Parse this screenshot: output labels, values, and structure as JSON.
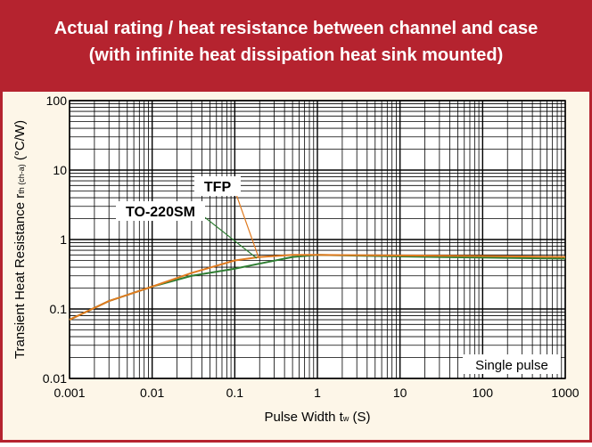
{
  "chart_data": {
    "type": "line",
    "title": [
      "Actual rating / heat resistance between channel and case",
      "(with infinite heat dissipation heat sink mounted)"
    ],
    "x_label": {
      "text": "Pulse Width t",
      "sub": "w",
      "suffix": " (S)"
    },
    "y_label": {
      "text": "Transient Heat Resistance r",
      "sub": "th (ch-a)",
      "suffix": " (°C/W)"
    },
    "x": [
      0.001,
      0.003,
      0.01,
      0.03,
      0.1,
      0.2,
      0.5,
      1,
      10,
      100,
      1000
    ],
    "series": [
      {
        "name": "TFP",
        "color": "#e07b20",
        "values": [
          0.07,
          0.13,
          0.21,
          0.33,
          0.5,
          0.56,
          0.6,
          0.6,
          0.59,
          0.58,
          0.56
        ]
      },
      {
        "name": "TO-220SM",
        "color": "#2e7d32",
        "values": [
          0.07,
          0.13,
          0.21,
          0.3,
          0.38,
          0.45,
          0.56,
          0.6,
          0.57,
          0.55,
          0.53
        ]
      }
    ],
    "annotation": "Single pulse",
    "xlim": [
      0.001,
      1000
    ],
    "ylim": [
      0.01,
      100
    ],
    "xticks": [
      0.001,
      0.01,
      0.1,
      1,
      10,
      100,
      1000
    ],
    "yticks": [
      0.01,
      0.1,
      1,
      10,
      100
    ],
    "log_x": true,
    "log_y": true,
    "grid": true
  }
}
